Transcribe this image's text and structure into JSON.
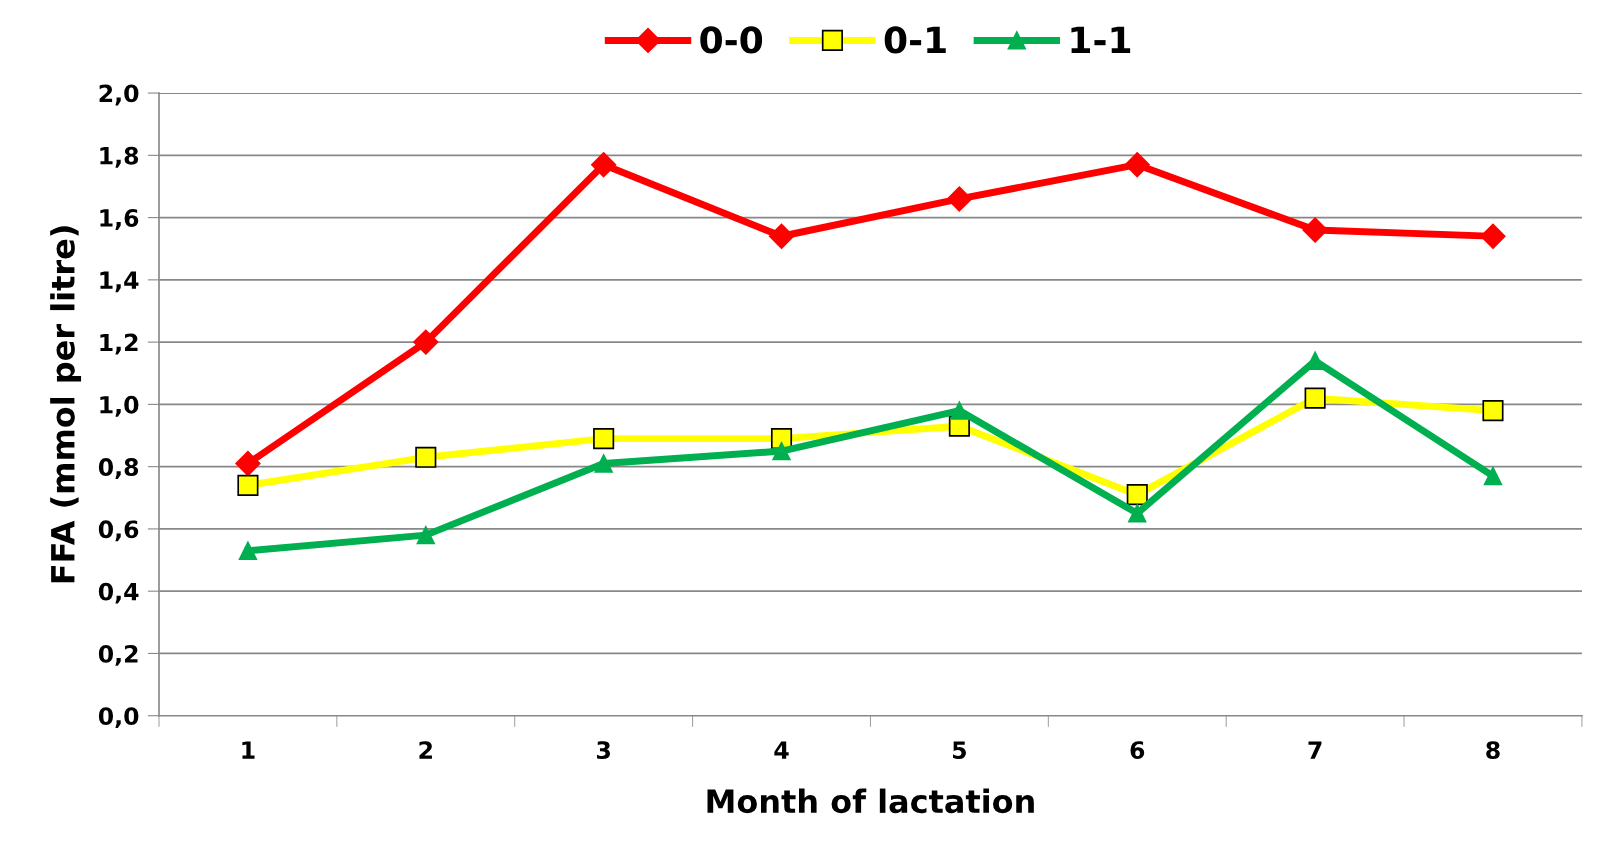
{
  "chart_data": {
    "type": "line",
    "xlabel": "Month of lactation",
    "ylabel": "FFA (mmol per litre)",
    "categories": [
      "1",
      "2",
      "3",
      "4",
      "5",
      "6",
      "7",
      "8"
    ],
    "series": [
      {
        "name": "0-0",
        "color": "#ff0000",
        "marker": "diamond",
        "values": [
          0.81,
          1.2,
          1.77,
          1.54,
          1.66,
          1.77,
          1.56,
          1.54
        ]
      },
      {
        "name": "0-1",
        "color": "#ffff00",
        "marker": "square",
        "values": [
          0.74,
          0.83,
          0.89,
          0.89,
          0.93,
          0.71,
          1.02,
          0.98
        ]
      },
      {
        "name": "1-1",
        "color": "#00b050",
        "marker": "triangle",
        "values": [
          0.53,
          0.58,
          0.81,
          0.85,
          0.98,
          0.65,
          1.14,
          0.77
        ]
      }
    ],
    "ylim": [
      0,
      2
    ],
    "yticks": [
      {
        "value": 0,
        "label": "0,0"
      },
      {
        "value": 0.2,
        "label": "0,2"
      },
      {
        "value": 0.4,
        "label": "0,4"
      },
      {
        "value": 0.6,
        "label": "0,6"
      },
      {
        "value": 0.8,
        "label": "0,8"
      },
      {
        "value": 1.0,
        "label": "1,0"
      },
      {
        "value": 1.2,
        "label": "1,2"
      },
      {
        "value": 1.4,
        "label": "1,4"
      },
      {
        "value": 1.6,
        "label": "1,6"
      },
      {
        "value": 1.8,
        "label": "1,8"
      },
      {
        "value": 2.0,
        "label": "2,0"
      }
    ],
    "grid": "y",
    "legend": "top",
    "line_style": "solid"
  }
}
